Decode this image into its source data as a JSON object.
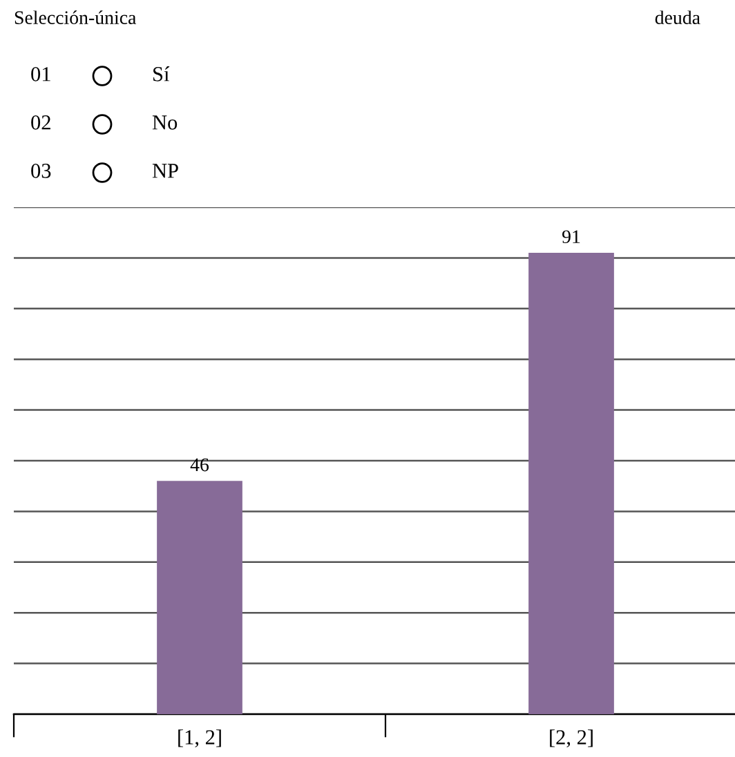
{
  "chart_data": {
    "type": "bar",
    "title": "Selección-única",
    "subtitle": "deuda",
    "annotations": [
      "01",
      "Sí",
      "02",
      "No",
      "03",
      "NP"
    ],
    "categories": [
      "[1, 2]",
      "[2, 2]"
    ],
    "values": [
      46,
      91
    ],
    "color": "#876b98",
    "data_labels": true,
    "ylim": [
      0,
      100
    ],
    "yticks": [
      {
        "value": 0,
        "label": null
      },
      {
        "value": 10,
        "label": null
      },
      {
        "value": 20,
        "label": null
      },
      {
        "value": 30,
        "label": null
      },
      {
        "value": 40,
        "label": null
      },
      {
        "value": 50,
        "label": null
      },
      {
        "value": 60,
        "label": null
      },
      {
        "value": 70,
        "label": null
      },
      {
        "value": 80,
        "label": null
      },
      {
        "value": 90,
        "label": null
      },
      {
        "value": 100,
        "label": null
      }
    ],
    "grid": "y",
    "tick_labels": "x"
  }
}
